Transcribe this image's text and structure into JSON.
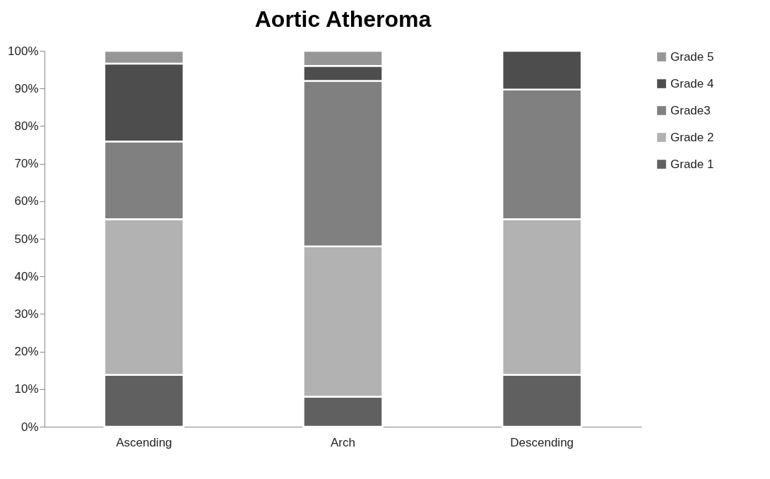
{
  "chart_data": {
    "type": "bar",
    "title": "Aortic Atheroma",
    "stacked": true,
    "categories": [
      "Ascending",
      "Arch",
      "Descending"
    ],
    "series": [
      {
        "name": "Grade 1",
        "color": "#606060",
        "values": [
          13.8,
          8,
          13.8
        ]
      },
      {
        "name": "Grade 2",
        "color": "#b2b2b2",
        "values": [
          41.4,
          40,
          41.4
        ]
      },
      {
        "name": "Grade3",
        "color": "#808080",
        "values": [
          20.7,
          44,
          34.5
        ]
      },
      {
        "name": "Grade 4",
        "color": "#4d4d4d",
        "values": [
          20.7,
          4,
          10.3
        ]
      },
      {
        "name": "Grade 5",
        "color": "#969696",
        "values": [
          3.4,
          4,
          null
        ]
      }
    ],
    "ylim": [
      0,
      100
    ],
    "yticks": [
      {
        "value": 0,
        "label": "0%"
      },
      {
        "value": 10,
        "label": "10%"
      },
      {
        "value": 20,
        "label": "20%"
      },
      {
        "value": 30,
        "label": "30%"
      },
      {
        "value": 40,
        "label": "40%"
      },
      {
        "value": 50,
        "label": "50%"
      },
      {
        "value": 60,
        "label": "60%"
      },
      {
        "value": 70,
        "label": "70%"
      },
      {
        "value": 80,
        "label": "80%"
      },
      {
        "value": 90,
        "label": "90%"
      },
      {
        "value": 100,
        "label": "100%"
      }
    ],
    "grid": false,
    "legend": "right"
  }
}
